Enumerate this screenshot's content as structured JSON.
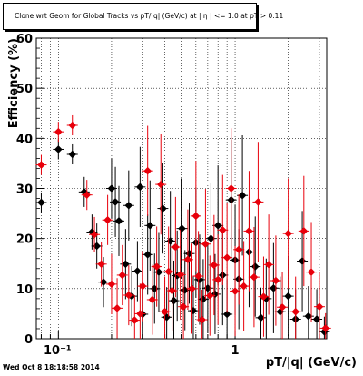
{
  "chart_data": {
    "type": "scatter",
    "title": "Clone wrt Geom for Global Tracks vs pT/|q| (GeV/c) at |  η | <= 1.0 at pT > 0.11",
    "xlabel": "pT/|q| (GeV/c)",
    "ylabel": "Efficiency (%)",
    "x_scale": "log",
    "xlim": [
      0.075,
      3.3
    ],
    "ylim": [
      0,
      60
    ],
    "y_ticks": [
      0,
      10,
      20,
      30,
      40,
      50,
      60
    ],
    "x_tick_labels": [
      "10⁻¹",
      "1"
    ],
    "grid": true,
    "colors": {
      "series_black": "#000000",
      "series_red": "#e8000b"
    },
    "series": [
      {
        "color": "#000000",
        "points": [
          [
            0.08,
            27.2,
            2.0
          ],
          [
            0.1,
            37.8,
            2.0
          ],
          [
            0.12,
            36.8,
            2.0
          ],
          [
            0.14,
            29.3,
            3.0
          ],
          [
            0.155,
            21.3,
            3.5
          ],
          [
            0.165,
            18.5,
            4.5
          ],
          [
            0.18,
            11.3,
            5.0
          ],
          [
            0.2,
            30.0,
            6.0
          ],
          [
            0.21,
            27.3,
            7.0
          ],
          [
            0.22,
            23.5,
            7.0
          ],
          [
            0.24,
            14.9,
            7.0
          ],
          [
            0.25,
            26.6,
            7.0
          ],
          [
            0.26,
            8.5,
            6.0
          ],
          [
            0.28,
            13.5,
            6.0
          ],
          [
            0.29,
            30.3,
            8.0
          ],
          [
            0.3,
            4.9,
            6.0
          ],
          [
            0.32,
            16.8,
            8.0
          ],
          [
            0.33,
            22.6,
            9.0
          ],
          [
            0.35,
            10.0,
            7.0
          ],
          [
            0.37,
            13.3,
            8.0
          ],
          [
            0.39,
            26.0,
            9.0
          ],
          [
            0.41,
            4.3,
            6.0
          ],
          [
            0.43,
            19.5,
            10.0
          ],
          [
            0.45,
            7.6,
            8.0
          ],
          [
            0.47,
            12.6,
            9.0
          ],
          [
            0.5,
            22.0,
            10.0
          ],
          [
            0.52,
            9.7,
            8.0
          ],
          [
            0.55,
            17.0,
            10.0
          ],
          [
            0.58,
            5.6,
            7.0
          ],
          [
            0.6,
            19.2,
            11.0
          ],
          [
            0.63,
            11.8,
            9.0
          ],
          [
            0.66,
            7.9,
            8.0
          ],
          [
            0.7,
            10.1,
            9.0
          ],
          [
            0.73,
            20.0,
            11.0
          ],
          [
            0.77,
            8.9,
            8.0
          ],
          [
            0.8,
            22.6,
            12.0
          ],
          [
            0.85,
            12.7,
            10.0
          ],
          [
            0.9,
            4.9,
            7.0
          ],
          [
            0.95,
            27.7,
            12.0
          ],
          [
            1.0,
            15.7,
            11.0
          ],
          [
            1.05,
            11.9,
            10.0
          ],
          [
            1.1,
            28.6,
            12.0
          ],
          [
            1.2,
            17.3,
            11.0
          ],
          [
            1.3,
            14.4,
            10.0
          ],
          [
            1.4,
            4.2,
            6.0
          ],
          [
            1.5,
            8.0,
            8.0
          ],
          [
            1.65,
            10.1,
            9.0
          ],
          [
            1.8,
            5.4,
            7.0
          ],
          [
            2.0,
            8.5,
            8.0
          ],
          [
            2.2,
            3.9,
            6.0
          ],
          [
            2.4,
            15.5,
            10.0
          ],
          [
            2.6,
            4.5,
            6.0
          ],
          [
            2.9,
            3.9,
            6.0
          ],
          [
            3.2,
            1.4,
            3.0
          ]
        ]
      },
      {
        "color": "#e8000b",
        "points": [
          [
            0.08,
            34.7,
            2.0
          ],
          [
            0.1,
            41.3,
            2.0
          ],
          [
            0.12,
            42.6,
            2.0
          ],
          [
            0.145,
            28.7,
            3.0
          ],
          [
            0.16,
            20.8,
            3.5
          ],
          [
            0.175,
            14.9,
            4.5
          ],
          [
            0.19,
            23.7,
            5.0
          ],
          [
            0.2,
            10.9,
            6.0
          ],
          [
            0.215,
            6.1,
            6.0
          ],
          [
            0.23,
            12.7,
            6.0
          ],
          [
            0.25,
            8.7,
            6.0
          ],
          [
            0.27,
            3.7,
            5.0
          ],
          [
            0.29,
            5.0,
            6.0
          ],
          [
            0.3,
            10.5,
            7.0
          ],
          [
            0.32,
            33.5,
            9.0
          ],
          [
            0.34,
            7.8,
            7.0
          ],
          [
            0.36,
            14.4,
            8.0
          ],
          [
            0.38,
            30.8,
            10.0
          ],
          [
            0.4,
            5.4,
            7.0
          ],
          [
            0.42,
            13.4,
            9.0
          ],
          [
            0.44,
            9.6,
            8.0
          ],
          [
            0.46,
            18.3,
            10.0
          ],
          [
            0.49,
            12.8,
            9.0
          ],
          [
            0.51,
            6.4,
            7.0
          ],
          [
            0.54,
            15.8,
            10.0
          ],
          [
            0.57,
            10.0,
            9.0
          ],
          [
            0.6,
            24.5,
            11.0
          ],
          [
            0.62,
            12.5,
            9.0
          ],
          [
            0.65,
            3.8,
            6.0
          ],
          [
            0.68,
            18.9,
            11.0
          ],
          [
            0.72,
            8.6,
            8.0
          ],
          [
            0.76,
            14.7,
            10.0
          ],
          [
            0.8,
            11.8,
            9.0
          ],
          [
            0.85,
            21.7,
            11.0
          ],
          [
            0.9,
            16.2,
            11.0
          ],
          [
            0.95,
            30.0,
            12.0
          ],
          [
            1.0,
            9.5,
            9.0
          ],
          [
            1.05,
            17.8,
            11.0
          ],
          [
            1.12,
            10.5,
            9.0
          ],
          [
            1.2,
            21.5,
            12.0
          ],
          [
            1.28,
            12.3,
            10.0
          ],
          [
            1.35,
            27.3,
            12.0
          ],
          [
            1.45,
            8.4,
            8.0
          ],
          [
            1.55,
            14.8,
            10.0
          ],
          [
            1.7,
            11.6,
            9.0
          ],
          [
            1.85,
            6.3,
            7.0
          ],
          [
            2.0,
            21.0,
            11.0
          ],
          [
            2.2,
            5.4,
            7.0
          ],
          [
            2.45,
            21.5,
            11.0
          ],
          [
            2.7,
            13.3,
            10.0
          ],
          [
            3.0,
            6.4,
            7.0
          ],
          [
            3.25,
            2.1,
            3.0
          ]
        ]
      }
    ]
  },
  "footer": {
    "date": "Wed Oct  8 18:18:58 2014"
  }
}
